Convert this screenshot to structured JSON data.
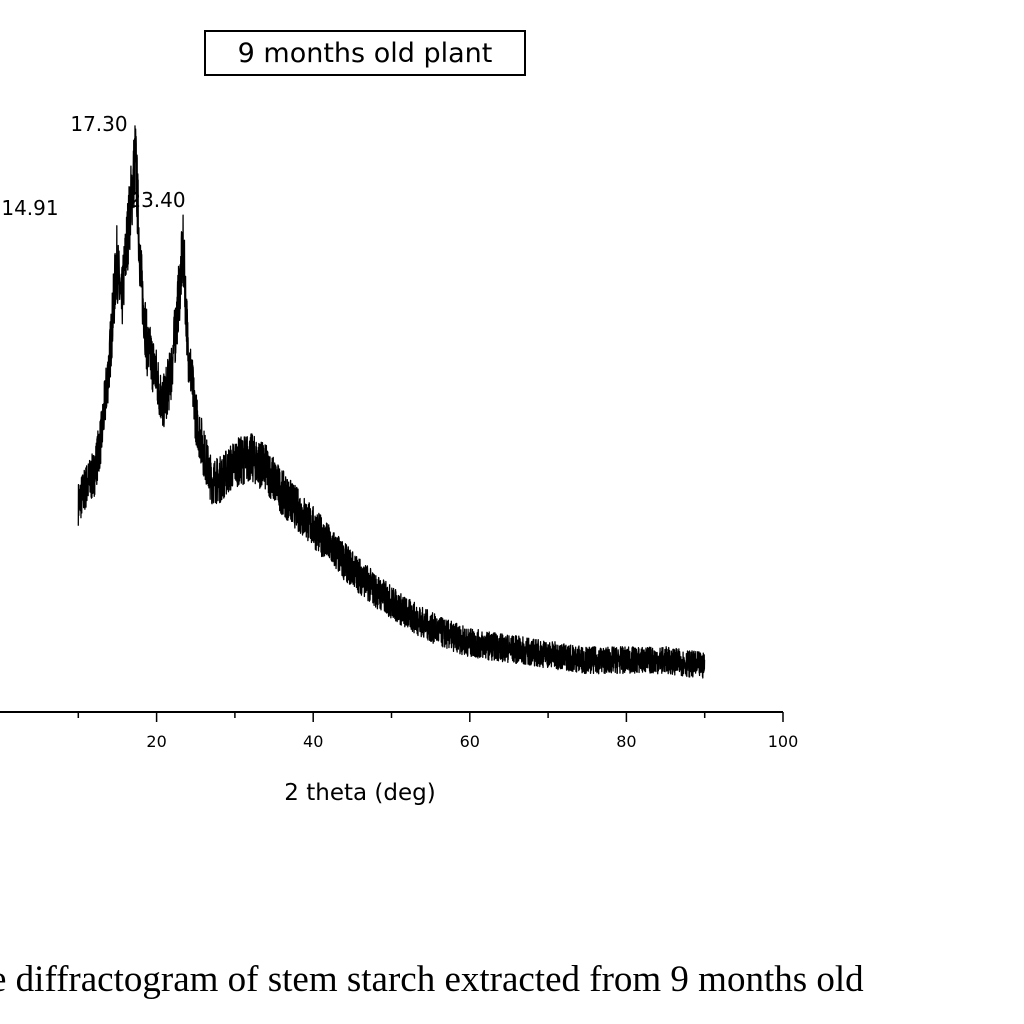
{
  "chart_data": {
    "type": "line",
    "legend_label": "9 months old plant",
    "xlabel": "2 theta (deg)",
    "ylabel": "",
    "xlim": [
      0,
      100
    ],
    "x_ticks": [
      20,
      40,
      60,
      80,
      100
    ],
    "x_tick_labels": [
      "20",
      "40",
      "60",
      "80",
      "100"
    ],
    "y_relative_range": [
      0,
      1
    ],
    "grid": false,
    "legend_placement": "top-center",
    "series": [
      {
        "x": [
          10,
          11,
          12,
          13,
          14,
          14.91,
          15.5,
          16.2,
          17.3,
          18,
          18.8,
          19.8,
          20.8,
          21.8,
          22.5,
          23.4,
          24,
          25,
          26,
          27,
          28,
          30,
          32,
          34,
          36,
          38,
          40,
          44,
          48,
          52,
          56,
          60,
          65,
          70,
          75,
          80,
          85,
          90
        ],
        "y": [
          0.33,
          0.36,
          0.38,
          0.45,
          0.58,
          0.75,
          0.67,
          0.78,
          0.93,
          0.72,
          0.6,
          0.56,
          0.5,
          0.55,
          0.64,
          0.77,
          0.6,
          0.48,
          0.42,
          0.37,
          0.37,
          0.4,
          0.41,
          0.39,
          0.35,
          0.32,
          0.29,
          0.23,
          0.18,
          0.14,
          0.11,
          0.09,
          0.08,
          0.07,
          0.06,
          0.06,
          0.06,
          0.05
        ]
      }
    ],
    "annotations": [
      {
        "x": 14.91,
        "text": "14.91"
      },
      {
        "x": 17.3,
        "text": "17.30"
      },
      {
        "x": 23.4,
        "text": "23.40"
      }
    ]
  },
  "caption": "e diffractogram of stem starch extracted from 9 months old"
}
